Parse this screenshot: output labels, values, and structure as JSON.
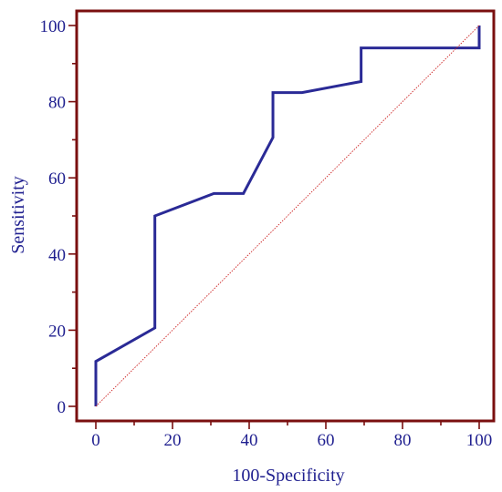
{
  "chart_data": {
    "type": "line",
    "xlabel": "100-Specificity",
    "ylabel": "Sensitivity",
    "xlim": [
      0,
      100
    ],
    "ylim": [
      0,
      100
    ],
    "x_ticks": [
      0,
      20,
      40,
      60,
      80,
      100
    ],
    "y_ticks": [
      0,
      20,
      40,
      60,
      80,
      100
    ],
    "grid": false,
    "colors": {
      "frame": "#7a0f0f",
      "curve": "#2a2a96",
      "diagonal": "#cc2222",
      "text": "#1f1f8f"
    },
    "series": [
      {
        "style": "solid",
        "x": [
          0,
          0,
          15.4,
          15.4,
          30.8,
          38.5,
          46.2,
          46.2,
          53.8,
          69.2,
          69.2,
          100,
          100
        ],
        "y": [
          0,
          11.8,
          20.6,
          50,
          55.9,
          55.9,
          70.6,
          82.4,
          82.4,
          85.3,
          94.1,
          94.1,
          100
        ]
      },
      {
        "style": "dotted",
        "x": [
          0,
          100
        ],
        "y": [
          0,
          100
        ]
      }
    ]
  }
}
